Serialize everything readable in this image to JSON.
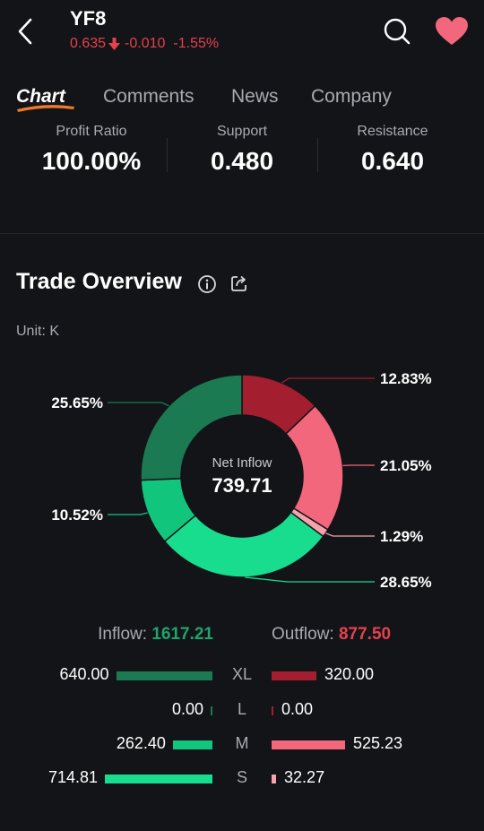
{
  "header": {
    "ticker": "YF8",
    "price": "0.635",
    "change": "-0.010",
    "change_percent": "-1.55%"
  },
  "tabs": [
    {
      "label": "Chart",
      "active": true
    },
    {
      "label": "Comments",
      "active": false
    },
    {
      "label": "News",
      "active": false
    },
    {
      "label": "Company",
      "active": false
    }
  ],
  "stats": [
    {
      "label": "Profit Ratio",
      "value": "100.00%"
    },
    {
      "label": "Support",
      "value": "0.480"
    },
    {
      "label": "Resistance",
      "value": "0.640"
    }
  ],
  "trade_overview": {
    "title": "Trade Overview",
    "unit": "Unit: K",
    "center_label": "Net Inflow",
    "center_value": "739.71",
    "inflow_label": "Inflow:",
    "inflow_value": "1617.21",
    "outflow_label": "Outflow:",
    "outflow_value": "877.50",
    "rows": [
      {
        "size": "XL",
        "inflow": "640.00",
        "outflow": "320.00",
        "inflow_k": 640.0,
        "outflow_k": 320.0
      },
      {
        "size": "L",
        "inflow": "0.00",
        "outflow": "0.00",
        "inflow_k": 0.0,
        "outflow_k": 0.0
      },
      {
        "size": "M",
        "inflow": "262.40",
        "outflow": "525.23",
        "inflow_k": 262.4,
        "outflow_k": 525.23
      },
      {
        "size": "S",
        "inflow": "714.81",
        "outflow": "32.27",
        "inflow_k": 714.81,
        "outflow_k": 32.27
      }
    ]
  },
  "chart_data": {
    "type": "pie",
    "slices": [
      {
        "label": "12.83%",
        "value": 12.83,
        "color": "#a31f2f"
      },
      {
        "label": "21.05%",
        "value": 21.05,
        "color": "#f2677b"
      },
      {
        "label": "1.29%",
        "value": 1.29,
        "color": "#f7a3ae"
      },
      {
        "label": "28.65%",
        "value": 28.65,
        "color": "#18dc8e"
      },
      {
        "label": "10.52%",
        "value": 10.52,
        "color": "#12c57c"
      },
      {
        "label": "25.65%",
        "value": 25.65,
        "color": "#1b7a51"
      }
    ]
  },
  "colors": {
    "background": "#131418",
    "down_red": "#e5414e",
    "inflow_green": "#1fa46b",
    "heart": "#f2677b",
    "accent_orange": "#f07a2a"
  }
}
